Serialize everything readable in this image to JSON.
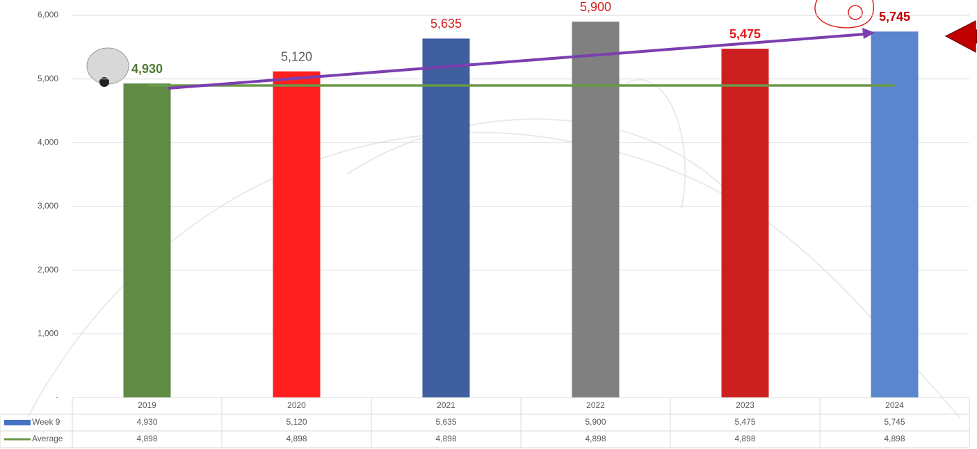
{
  "chart_data": {
    "type": "bar",
    "categories": [
      "2019",
      "2020",
      "2021",
      "2022",
      "2023",
      "2024"
    ],
    "series": [
      {
        "name": "Week 9",
        "color": "#4472c4",
        "type": "bar",
        "colors": [
          "#5f8b45",
          "#ff1f1f",
          "#3f5f9f",
          "#808080",
          "#cc2020",
          "#5b85cc"
        ],
        "values": [
          4930,
          5120,
          5635,
          5900,
          5475,
          5745
        ],
        "value_labels": [
          "4,930",
          "5,120",
          "5,635",
          "5,900",
          "5,475",
          "5,745"
        ],
        "value_label_colors": [
          "#4e7a2e",
          "#595959",
          "#d42020",
          "#d42020",
          "#e81818",
          "#c00000"
        ]
      },
      {
        "name": "Average",
        "color": "#6a9a48",
        "type": "line",
        "values": [
          4898,
          4898,
          4898,
          4898,
          4898,
          4898
        ],
        "value_labels": [
          "4,898",
          "4,898",
          "4,898",
          "4,898",
          "4,898",
          "4,898"
        ]
      }
    ],
    "ylim": [
      0,
      6240
    ],
    "yticks": [
      {
        "value": 0,
        "label": "-"
      },
      {
        "value": 1000,
        "label": "1,000"
      },
      {
        "value": 2000,
        "label": "2,000"
      },
      {
        "value": 3000,
        "label": "3,000"
      },
      {
        "value": 4000,
        "label": "4,000"
      },
      {
        "value": 5000,
        "label": "5,000"
      },
      {
        "value": 6000,
        "label": "6,000"
      }
    ],
    "grid": true
  }
}
